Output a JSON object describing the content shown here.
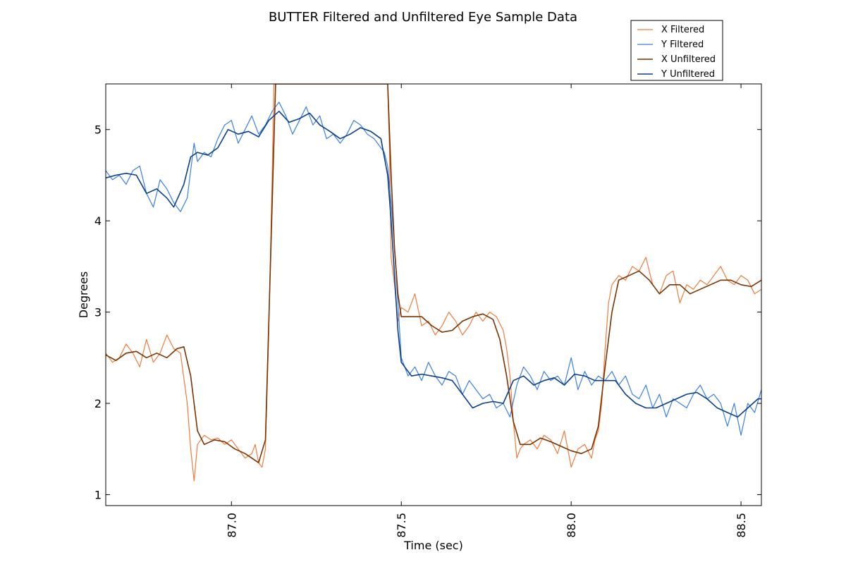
{
  "chart_data": {
    "type": "line",
    "title": "BUTTER Filtered and Unfiltered Eye Sample Data",
    "xlabel": "Time (sec)",
    "ylabel": "Degrees",
    "xlim": [
      86.63,
      88.56
    ],
    "ylim": [
      0.88,
      5.5
    ],
    "xticks": [
      87.0,
      87.5,
      88.0,
      88.5
    ],
    "xtick_labels": [
      "87.0",
      "87.5",
      "88.0",
      "88.5"
    ],
    "yticks": [
      1,
      2,
      3,
      4,
      5
    ],
    "ytick_labels": [
      "1",
      "2",
      "3",
      "4",
      "5"
    ],
    "grid": false,
    "legend_position": "top-right",
    "colors": {
      "x_filtered": "#f07a3c",
      "y_filtered": "#3a7ee6",
      "x_unfiltered": "#7a3300",
      "y_unfiltered": "#0a3f8a"
    },
    "series": [
      {
        "name": "X Filtered",
        "key": "x_filtered",
        "width": 1.2,
        "x": [
          86.63,
          86.65,
          86.67,
          86.69,
          86.71,
          86.73,
          86.75,
          86.77,
          86.79,
          86.81,
          86.83,
          86.85,
          86.87,
          86.88,
          86.89,
          86.9,
          86.92,
          86.94,
          86.96,
          86.98,
          87.0,
          87.02,
          87.04,
          87.06,
          87.07,
          87.08,
          87.09,
          87.1,
          87.11,
          87.12,
          87.125,
          87.46,
          87.465,
          87.47,
          87.48,
          87.49,
          87.5,
          87.52,
          87.54,
          87.56,
          87.58,
          87.6,
          87.62,
          87.64,
          87.66,
          87.68,
          87.7,
          87.72,
          87.74,
          87.76,
          87.78,
          87.8,
          87.81,
          87.82,
          87.83,
          87.84,
          87.85,
          87.86,
          87.88,
          87.9,
          87.92,
          87.94,
          87.96,
          87.98,
          88.0,
          88.02,
          88.04,
          88.06,
          88.07,
          88.08,
          88.09,
          88.1,
          88.11,
          88.12,
          88.14,
          88.16,
          88.18,
          88.2,
          88.22,
          88.24,
          88.26,
          88.28,
          88.3,
          88.32,
          88.34,
          88.36,
          88.38,
          88.4,
          88.42,
          88.44,
          88.46,
          88.48,
          88.5,
          88.52,
          88.54,
          88.56
        ],
        "y": [
          2.55,
          2.45,
          2.5,
          2.65,
          2.55,
          2.4,
          2.7,
          2.45,
          2.55,
          2.75,
          2.6,
          2.55,
          2.0,
          1.5,
          1.15,
          1.55,
          1.65,
          1.6,
          1.62,
          1.55,
          1.6,
          1.5,
          1.4,
          1.45,
          1.55,
          1.35,
          1.3,
          1.5,
          2.8,
          4.5,
          5.5,
          5.5,
          4.8,
          3.6,
          3.3,
          2.9,
          3.05,
          3.0,
          3.2,
          2.85,
          2.9,
          2.75,
          2.85,
          3.0,
          2.9,
          2.75,
          2.85,
          3.0,
          2.9,
          3.0,
          2.95,
          2.8,
          2.6,
          2.3,
          1.8,
          1.4,
          1.5,
          1.55,
          1.6,
          1.5,
          1.65,
          1.6,
          1.45,
          1.7,
          1.3,
          1.5,
          1.55,
          1.4,
          1.6,
          1.7,
          2.0,
          2.6,
          3.1,
          3.3,
          3.4,
          3.35,
          3.5,
          3.45,
          3.6,
          3.3,
          3.2,
          3.4,
          3.45,
          3.1,
          3.3,
          3.25,
          3.35,
          3.3,
          3.4,
          3.5,
          3.35,
          3.3,
          3.4,
          3.35,
          3.2,
          3.25
        ]
      },
      {
        "name": "Y Filtered",
        "key": "y_filtered",
        "width": 1.2,
        "x": [
          86.63,
          86.65,
          86.67,
          86.69,
          86.71,
          86.73,
          86.75,
          86.77,
          86.79,
          86.81,
          86.83,
          86.85,
          86.87,
          86.89,
          86.9,
          86.92,
          86.94,
          86.96,
          86.98,
          87.0,
          87.02,
          87.04,
          87.06,
          87.08,
          87.1,
          87.12,
          87.14,
          87.16,
          87.18,
          87.2,
          87.22,
          87.24,
          87.26,
          87.28,
          87.3,
          87.32,
          87.34,
          87.36,
          87.38,
          87.4,
          87.42,
          87.44,
          87.45,
          87.46,
          87.47,
          87.48,
          87.49,
          87.5,
          87.52,
          87.54,
          87.56,
          87.58,
          87.6,
          87.62,
          87.64,
          87.66,
          87.68,
          87.7,
          87.72,
          87.74,
          87.76,
          87.78,
          87.8,
          87.82,
          87.84,
          87.86,
          87.88,
          87.9,
          87.92,
          87.94,
          87.96,
          87.98,
          88.0,
          88.02,
          88.04,
          88.06,
          88.08,
          88.1,
          88.12,
          88.14,
          88.16,
          88.18,
          88.2,
          88.22,
          88.24,
          88.26,
          88.28,
          88.3,
          88.32,
          88.34,
          88.36,
          88.38,
          88.4,
          88.42,
          88.44,
          88.46,
          88.48,
          88.5,
          88.52,
          88.54,
          88.56
        ],
        "y": [
          4.55,
          4.45,
          4.5,
          4.4,
          4.55,
          4.6,
          4.3,
          4.15,
          4.45,
          4.35,
          4.2,
          4.1,
          4.25,
          4.85,
          4.65,
          4.75,
          4.7,
          4.9,
          5.05,
          5.1,
          4.85,
          5.0,
          5.15,
          4.95,
          5.05,
          5.2,
          5.3,
          5.15,
          4.95,
          5.1,
          5.25,
          5.05,
          5.15,
          4.9,
          4.95,
          4.85,
          4.95,
          5.1,
          5.05,
          4.95,
          4.9,
          4.8,
          4.75,
          4.6,
          4.2,
          3.7,
          3.1,
          2.5,
          2.3,
          2.4,
          2.25,
          2.45,
          2.3,
          2.2,
          2.35,
          2.3,
          2.1,
          2.25,
          2.15,
          2.05,
          2.1,
          1.95,
          2.0,
          1.85,
          2.2,
          2.4,
          2.3,
          2.15,
          2.35,
          2.25,
          2.3,
          2.2,
          2.5,
          2.15,
          2.35,
          2.2,
          2.3,
          2.25,
          2.35,
          2.2,
          2.3,
          2.1,
          2.05,
          2.2,
          1.95,
          2.1,
          1.85,
          2.05,
          2.0,
          1.95,
          2.1,
          2.2,
          2.05,
          2.1,
          2.0,
          1.75,
          2.0,
          1.65,
          2.0,
          1.9,
          2.15
        ]
      },
      {
        "name": "X Unfiltered",
        "key": "x_unfiltered",
        "width": 1.6,
        "x": [
          86.63,
          86.66,
          86.69,
          86.72,
          86.75,
          86.78,
          86.81,
          86.84,
          86.86,
          86.88,
          86.9,
          86.92,
          86.95,
          86.98,
          87.01,
          87.04,
          87.06,
          87.08,
          87.1,
          87.12,
          87.13,
          87.46,
          87.47,
          87.48,
          87.49,
          87.5,
          87.53,
          87.56,
          87.59,
          87.62,
          87.65,
          87.68,
          87.71,
          87.74,
          87.77,
          87.79,
          87.81,
          87.83,
          87.85,
          87.88,
          87.91,
          87.94,
          87.97,
          88.0,
          88.03,
          88.06,
          88.08,
          88.1,
          88.12,
          88.14,
          88.17,
          88.2,
          88.23,
          88.26,
          88.29,
          88.32,
          88.35,
          88.38,
          88.41,
          88.44,
          88.47,
          88.5,
          88.53,
          88.56
        ],
        "y": [
          2.53,
          2.47,
          2.55,
          2.57,
          2.5,
          2.55,
          2.5,
          2.6,
          2.62,
          2.3,
          1.7,
          1.55,
          1.6,
          1.58,
          1.5,
          1.45,
          1.4,
          1.35,
          1.6,
          4.2,
          5.5,
          5.5,
          4.5,
          3.7,
          3.2,
          2.95,
          2.95,
          2.95,
          2.85,
          2.78,
          2.8,
          2.9,
          2.95,
          2.98,
          2.92,
          2.7,
          2.3,
          1.8,
          1.55,
          1.55,
          1.62,
          1.58,
          1.53,
          1.48,
          1.45,
          1.5,
          1.75,
          2.4,
          3.0,
          3.35,
          3.4,
          3.45,
          3.35,
          3.2,
          3.3,
          3.3,
          3.2,
          3.25,
          3.3,
          3.35,
          3.35,
          3.3,
          3.28,
          3.35
        ]
      },
      {
        "name": "Y Unfiltered",
        "key": "y_unfiltered",
        "width": 1.6,
        "x": [
          86.63,
          86.66,
          86.69,
          86.72,
          86.75,
          86.78,
          86.81,
          86.83,
          86.86,
          86.88,
          86.9,
          86.93,
          86.96,
          86.99,
          87.02,
          87.05,
          87.08,
          87.11,
          87.14,
          87.17,
          87.2,
          87.23,
          87.26,
          87.29,
          87.32,
          87.35,
          87.38,
          87.41,
          87.44,
          87.46,
          87.47,
          87.48,
          87.49,
          87.5,
          87.53,
          87.56,
          87.59,
          87.62,
          87.65,
          87.68,
          87.71,
          87.74,
          87.77,
          87.8,
          87.83,
          87.86,
          87.89,
          87.92,
          87.95,
          87.98,
          88.01,
          88.04,
          88.07,
          88.1,
          88.13,
          88.16,
          88.19,
          88.22,
          88.25,
          88.28,
          88.31,
          88.34,
          88.37,
          88.4,
          88.43,
          88.46,
          88.49,
          88.52,
          88.55,
          88.56
        ],
        "y": [
          4.47,
          4.5,
          4.52,
          4.5,
          4.3,
          4.35,
          4.25,
          4.15,
          4.4,
          4.7,
          4.75,
          4.72,
          4.8,
          5.0,
          4.95,
          4.98,
          4.92,
          5.1,
          5.2,
          5.08,
          5.12,
          5.18,
          5.05,
          4.98,
          4.9,
          4.95,
          5.02,
          4.98,
          4.9,
          4.5,
          4.0,
          3.4,
          2.8,
          2.45,
          2.3,
          2.32,
          2.3,
          2.28,
          2.25,
          2.1,
          1.95,
          2.0,
          2.02,
          2.0,
          2.25,
          2.3,
          2.2,
          2.25,
          2.28,
          2.2,
          2.32,
          2.3,
          2.25,
          2.25,
          2.25,
          2.1,
          2.0,
          1.95,
          1.95,
          2.0,
          2.05,
          2.1,
          2.12,
          2.05,
          1.95,
          1.9,
          1.85,
          1.95,
          2.05,
          2.05
        ]
      }
    ]
  }
}
